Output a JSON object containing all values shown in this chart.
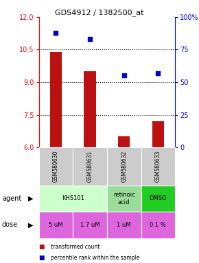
{
  "title": "GDS4912 / 1382500_at",
  "samples": [
    "GSM580630",
    "GSM580631",
    "GSM580632",
    "GSM580633"
  ],
  "bar_values": [
    10.4,
    9.5,
    6.5,
    7.2
  ],
  "scatter_values": [
    88,
    83,
    55,
    57
  ],
  "ylim_left": [
    6,
    12
  ],
  "ylim_right": [
    0,
    100
  ],
  "yticks_left": [
    6,
    7.5,
    9,
    10.5,
    12
  ],
  "yticks_right": [
    0,
    25,
    50,
    75,
    100
  ],
  "ytick_right_labels": [
    "0",
    "25",
    "50",
    "75",
    "100%"
  ],
  "bar_color": "#bb1111",
  "scatter_color": "#0000cc",
  "agent_groups": [
    {
      "label": "KHS101",
      "start": 0,
      "end": 1,
      "color": "#ccffcc"
    },
    {
      "label": "retinoic\nacid",
      "start": 2,
      "end": 2,
      "color": "#99dd99"
    },
    {
      "label": "DMSO",
      "start": 3,
      "end": 3,
      "color": "#22cc22"
    }
  ],
  "dose_labels": [
    "5 uM",
    "1.7 uM",
    "1 uM",
    "0.1 %"
  ],
  "dose_colors": [
    "#dd66dd",
    "#dd66dd",
    "#dd66dd",
    "#dd66dd"
  ],
  "sample_bg_color": "#cccccc",
  "legend_bar_label": "transformed count",
  "legend_scatter_label": "percentile rank within the sample",
  "agent_row_label": "agent",
  "dose_row_label": "dose",
  "gridlines": [
    7.5,
    9,
    10.5
  ]
}
